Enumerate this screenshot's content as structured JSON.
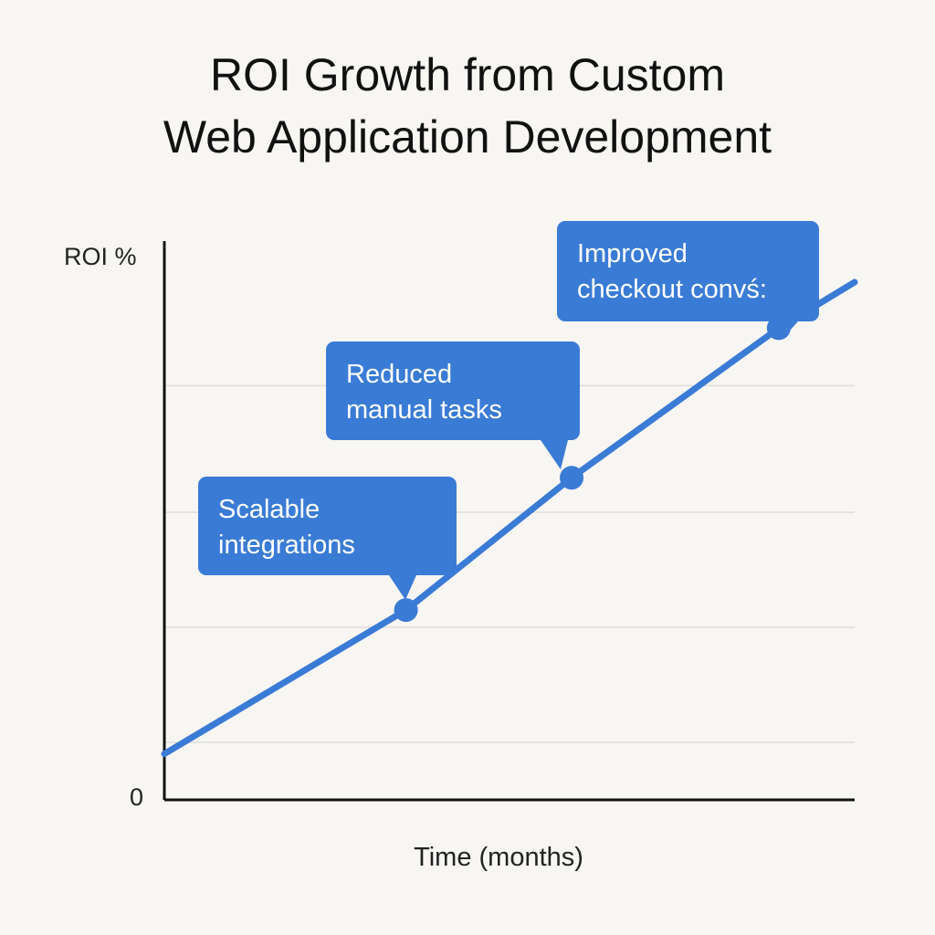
{
  "chart_data": {
    "type": "line",
    "title_lines": [
      "ROI Growth from Custom",
      "Web Application Development"
    ],
    "ylabel": "ROI %",
    "xlabel": "Time (months)",
    "y_tick_labels": [
      "0"
    ],
    "grid": true,
    "colors": {
      "series": "#3a7bd5",
      "axis": "#111111",
      "grid": "#dddddd",
      "callout": "#3a7bd5"
    },
    "series": [
      {
        "values": [
          {
            "x": 0,
            "y": 8
          },
          {
            "x": 35,
            "y": 33
          },
          {
            "x": 59,
            "y": 56
          },
          {
            "x": 89,
            "y": 82
          },
          {
            "x": 100,
            "y": 90
          }
        ]
      }
    ],
    "annotations": [
      {
        "x": 35,
        "y": 33,
        "lines": [
          "Scalable",
          "integrations"
        ]
      },
      {
        "x": 59,
        "y": 56,
        "lines": [
          "Reduced",
          "manual tasks"
        ]
      },
      {
        "x": 89,
        "y": 82,
        "lines": [
          "Improved",
          "checkout convś:"
        ]
      }
    ]
  }
}
